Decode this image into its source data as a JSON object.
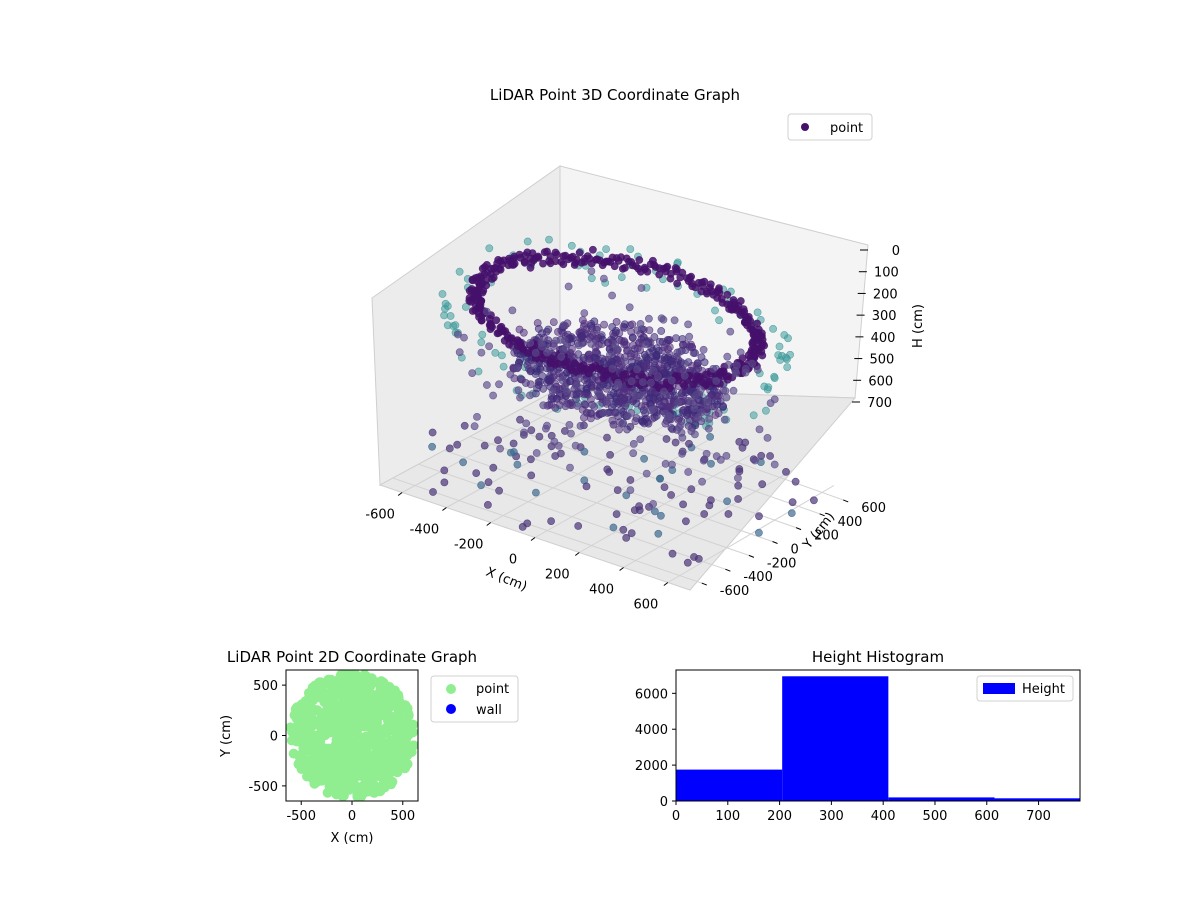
{
  "chart_data": [
    {
      "type": "scatter3d",
      "title": "LiDAR Point 3D Coordinate Graph",
      "xlabel": "X (cm)",
      "ylabel": "Y (cm)",
      "zlabel": "H (cm)",
      "legend": {
        "position": "top-right",
        "entries": [
          "point"
        ]
      },
      "x_ticks": [
        -600,
        -400,
        -200,
        0,
        200,
        400,
        600
      ],
      "y_ticks": [
        -600,
        -400,
        -200,
        0,
        200,
        400,
        600
      ],
      "z_ticks": [
        0,
        100,
        200,
        300,
        400,
        500,
        600,
        700
      ],
      "xlim": [
        -700,
        700
      ],
      "ylim": [
        -700,
        700
      ],
      "zlim": [
        0,
        750
      ],
      "zaxis_inverted": true,
      "grid": true,
      "series": [
        {
          "name": "point",
          "description": "Ring of points near H=100 radius ~600 cm, dense cluster near H=300 within radius ~400 cm, sparse points near H=700"
        }
      ]
    },
    {
      "type": "scatter",
      "title": "LiDAR Point 2D Coordinate Graph",
      "xlabel": "X (cm)",
      "ylabel": "Y (cm)",
      "x_ticks": [
        -500,
        0,
        500
      ],
      "y_ticks": [
        -500,
        0,
        500
      ],
      "xlim": [
        -650,
        650
      ],
      "ylim": [
        -650,
        650
      ],
      "legend": {
        "position": "outside-right",
        "entries": [
          "point",
          "wall"
        ]
      },
      "series": [
        {
          "name": "point",
          "color": "#90ee90"
        },
        {
          "name": "wall",
          "color": "#0000ff"
        }
      ]
    },
    {
      "type": "bar",
      "title": "Height Histogram",
      "bin_edges": [
        0,
        205,
        410,
        615,
        780
      ],
      "values": [
        1750,
        6950,
        200,
        150
      ],
      "x_ticks": [
        0,
        100,
        200,
        300,
        400,
        500,
        600,
        700
      ],
      "y_ticks": [
        0,
        2000,
        4000,
        6000
      ],
      "xlim": [
        0,
        780
      ],
      "ylim": [
        0,
        7300
      ],
      "color": "#0000ff",
      "legend": {
        "position": "top-right",
        "entries": [
          "Height"
        ]
      },
      "series": [
        {
          "name": "Height",
          "values": [
            1750,
            6950,
            200,
            150
          ]
        }
      ]
    }
  ]
}
